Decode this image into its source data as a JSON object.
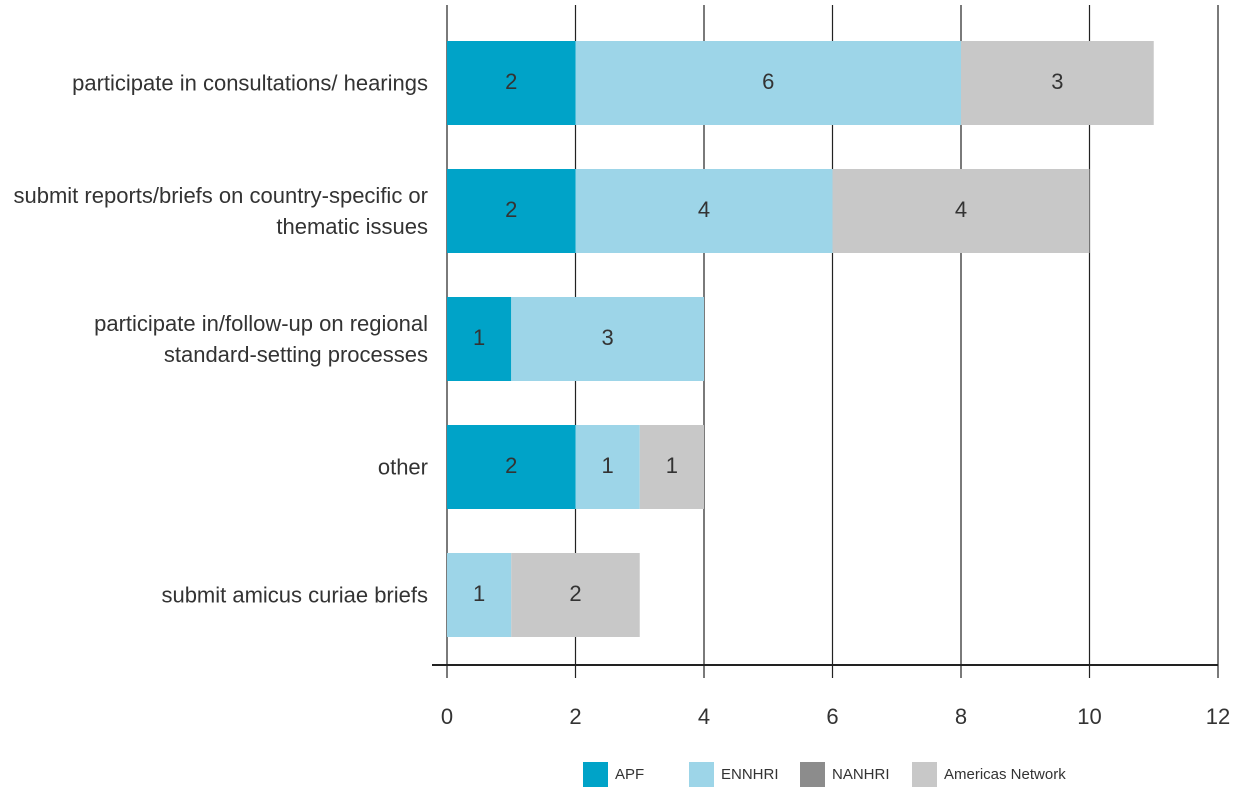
{
  "chart_data": {
    "type": "stacked-bar-horizontal",
    "categories": [
      "participate in consultations/ hearings",
      "submit reports/briefs on country-specific or thematic issues",
      "participate in/follow-up on regional standard-setting processes",
      "other",
      "submit amicus curiae briefs"
    ],
    "series": [
      {
        "name": "APF",
        "color": "#00a3c8",
        "values": [
          2,
          2,
          1,
          2,
          null
        ]
      },
      {
        "name": "ENNHRI",
        "color": "#9dd5e8",
        "values": [
          6,
          4,
          3,
          1,
          1
        ]
      },
      {
        "name": "NANHRI",
        "color": "#8c8c8c",
        "values": [
          null,
          null,
          null,
          null,
          null
        ]
      },
      {
        "name": "Americas Network",
        "color": "#c8c8c8",
        "values": [
          3,
          4,
          null,
          1,
          2
        ]
      }
    ],
    "xlim": [
      0,
      12
    ],
    "xticks": [
      0,
      2,
      4,
      6,
      8,
      10,
      12
    ],
    "grid": true,
    "legend": "bottom"
  }
}
